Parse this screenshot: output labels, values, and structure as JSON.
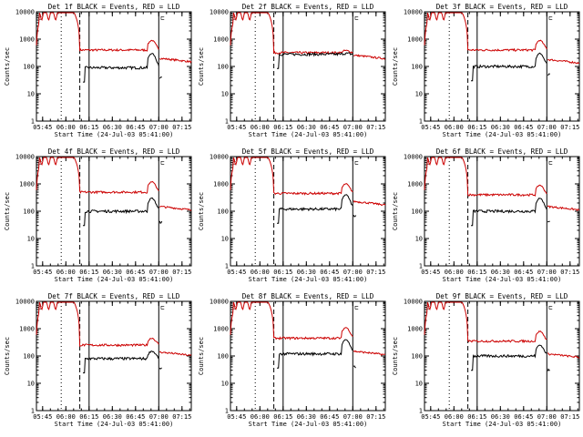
{
  "page": {
    "title_template": "Det {n}f BLACK = Events, RED = LLD",
    "xlabel": "Start Time (24-Jul-03 05:41:00)",
    "ylabel": "Counts/sec"
  },
  "colors": {
    "events": "#000000",
    "lld": "#cc0000",
    "axes": "#000000",
    "background": "#ffffff"
  },
  "axes": {
    "x_ticks": [
      "05:45",
      "06:00",
      "06:15",
      "06:30",
      "06:45",
      "07:00",
      "07:15"
    ],
    "y_ticks": [
      "1",
      "10",
      "100",
      "1000",
      "10000"
    ],
    "ylim": [
      1,
      10000
    ],
    "ylog": true,
    "xlim_minutes_after_05_41": [
      0,
      100
    ]
  },
  "chart_data": [
    {
      "type": "line",
      "title": "Det 1f BLACK = Events, RED = LLD",
      "xlabel": "Start Time (24-Jul-03 05:41:00)",
      "ylabel": "Counts/sec",
      "ylog": true,
      "ylim": [
        1,
        10000
      ],
      "events_level": 90,
      "lld_level": 400,
      "events_peak": 300,
      "lld_peak": 900,
      "gap_start": "07:00",
      "post_gap_events": 40,
      "post_gap_lld": 200,
      "series": [
        {
          "name": "BLACK = Events",
          "color": "#000000"
        },
        {
          "name": "RED = LLD",
          "color": "#cc0000"
        }
      ]
    },
    {
      "type": "line",
      "title": "Det 2f BLACK = Events, RED = LLD",
      "xlabel": "Start Time (24-Jul-03 05:41:00)",
      "ylabel": "Counts/sec",
      "ylog": true,
      "ylim": [
        1,
        10000
      ],
      "events_level": 280,
      "lld_level": 320,
      "events_peak": 300,
      "lld_peak": 380,
      "gap_start": "07:00",
      "post_gap_events": 0,
      "post_gap_lld": 260,
      "series": [
        {
          "name": "BLACK = Events",
          "color": "#000000"
        },
        {
          "name": "RED = LLD",
          "color": "#cc0000"
        }
      ]
    },
    {
      "type": "line",
      "title": "Det 3f BLACK = Events, RED = LLD",
      "xlabel": "Start Time (24-Jul-03 05:41:00)",
      "ylabel": "Counts/sec",
      "ylog": true,
      "ylim": [
        1,
        10000
      ],
      "events_level": 100,
      "lld_level": 400,
      "events_peak": 300,
      "lld_peak": 900,
      "gap_start": "07:00",
      "post_gap_events": 50,
      "post_gap_lld": 180,
      "series": [
        {
          "name": "BLACK = Events",
          "color": "#000000"
        },
        {
          "name": "RED = LLD",
          "color": "#cc0000"
        }
      ]
    },
    {
      "type": "line",
      "title": "Det 4f BLACK = Events, RED = LLD",
      "xlabel": "Start Time (24-Jul-03 05:41:00)",
      "ylabel": "Counts/sec",
      "ylog": true,
      "ylim": [
        1,
        10000
      ],
      "events_level": 100,
      "lld_level": 500,
      "events_peak": 300,
      "lld_peak": 1200,
      "gap_start": "07:00",
      "post_gap_events": 40,
      "post_gap_lld": 150,
      "series": [
        {
          "name": "BLACK = Events",
          "color": "#000000"
        },
        {
          "name": "RED = LLD",
          "color": "#cc0000"
        }
      ]
    },
    {
      "type": "line",
      "title": "Det 5f BLACK = Events, RED = LLD",
      "xlabel": "Start Time (24-Jul-03 05:41:00)",
      "ylabel": "Counts/sec",
      "ylog": true,
      "ylim": [
        1,
        10000
      ],
      "events_level": 120,
      "lld_level": 450,
      "events_peak": 400,
      "lld_peak": 1000,
      "gap_start": "07:00",
      "post_gap_events": 70,
      "post_gap_lld": 230,
      "series": [
        {
          "name": "BLACK = Events",
          "color": "#000000"
        },
        {
          "name": "RED = LLD",
          "color": "#cc0000"
        }
      ]
    },
    {
      "type": "line",
      "title": "Det 6f BLACK = Events, RED = LLD",
      "xlabel": "Start Time (24-Jul-03 05:41:00)",
      "ylabel": "Counts/sec",
      "ylog": true,
      "ylim": [
        1,
        10000
      ],
      "events_level": 100,
      "lld_level": 400,
      "events_peak": 300,
      "lld_peak": 900,
      "gap_start": "07:00",
      "post_gap_events": 40,
      "post_gap_lld": 150,
      "series": [
        {
          "name": "BLACK = Events",
          "color": "#000000"
        },
        {
          "name": "RED = LLD",
          "color": "#cc0000"
        }
      ]
    },
    {
      "type": "line",
      "title": "Det 7f BLACK = Events, RED = LLD",
      "xlabel": "Start Time (24-Jul-03 05:41:00)",
      "ylabel": "Counts/sec",
      "ylog": true,
      "ylim": [
        1,
        10000
      ],
      "events_level": 80,
      "lld_level": 250,
      "events_peak": 150,
      "lld_peak": 450,
      "gap_start": "07:00",
      "post_gap_events": 35,
      "post_gap_lld": 140,
      "series": [
        {
          "name": "BLACK = Events",
          "color": "#000000"
        },
        {
          "name": "RED = LLD",
          "color": "#cc0000"
        }
      ]
    },
    {
      "type": "line",
      "title": "Det 8f BLACK = Events, RED = LLD",
      "xlabel": "Start Time (24-Jul-03 05:41:00)",
      "ylabel": "Counts/sec",
      "ylog": true,
      "ylim": [
        1,
        10000
      ],
      "events_level": 120,
      "lld_level": 450,
      "events_peak": 400,
      "lld_peak": 1100,
      "gap_start": "07:00",
      "post_gap_events": 40,
      "post_gap_lld": 150,
      "series": [
        {
          "name": "BLACK = Events",
          "color": "#000000"
        },
        {
          "name": "RED = LLD",
          "color": "#cc0000"
        }
      ]
    },
    {
      "type": "line",
      "title": "Det 9f BLACK = Events, RED = LLD",
      "xlabel": "Start Time (24-Jul-03 05:41:00)",
      "ylabel": "Counts/sec",
      "ylog": true,
      "ylim": [
        1,
        10000
      ],
      "events_level": 100,
      "lld_level": 350,
      "events_peak": 250,
      "lld_peak": 800,
      "gap_start": "07:00",
      "post_gap_events": 30,
      "post_gap_lld": 120,
      "series": [
        {
          "name": "BLACK = Events",
          "color": "#000000"
        },
        {
          "name": "RED = LLD",
          "color": "#cc0000"
        }
      ]
    }
  ]
}
